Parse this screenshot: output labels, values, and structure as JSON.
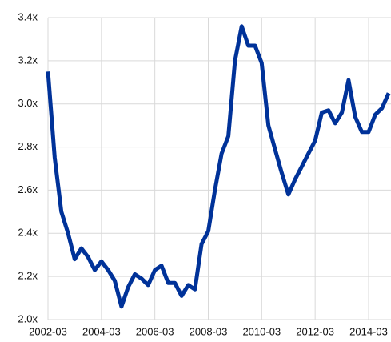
{
  "chart_data": {
    "type": "line",
    "categories": [
      "2002-03",
      null,
      null,
      null,
      null,
      null,
      null,
      null,
      "2004-03",
      null,
      null,
      null,
      null,
      null,
      null,
      null,
      "2006-03",
      null,
      null,
      null,
      null,
      null,
      null,
      null,
      "2008-03",
      null,
      null,
      null,
      null,
      null,
      null,
      null,
      "2010-03",
      null,
      null,
      null,
      null,
      null,
      null,
      null,
      "2012-03",
      null,
      null,
      null,
      null,
      null,
      null,
      null,
      "2014-03",
      null,
      null,
      null
    ],
    "series": [
      {
        "color": "#003299",
        "values": [
          3.15,
          2.75,
          2.5,
          2.4,
          2.28,
          2.33,
          2.29,
          2.23,
          2.27,
          2.23,
          2.18,
          2.06,
          2.15,
          2.21,
          2.19,
          2.16,
          2.23,
          2.25,
          2.17,
          2.17,
          2.11,
          2.16,
          2.14,
          2.35,
          2.41,
          2.6,
          2.77,
          2.85,
          3.2,
          3.36,
          3.27,
          3.27,
          3.19,
          2.9,
          2.79,
          2.68,
          2.58,
          2.65,
          2.71,
          2.77,
          2.83,
          2.96,
          2.97,
          2.91,
          2.96,
          3.11,
          2.94,
          2.87,
          2.87,
          2.95,
          2.98,
          3.05
        ]
      }
    ],
    "ylim": [
      2.0,
      3.4
    ],
    "yticks": [
      {
        "value": 2.0,
        "label": "2.0x"
      },
      {
        "value": 2.2,
        "label": "2.2x"
      },
      {
        "value": 2.4,
        "label": "2.4x"
      },
      {
        "value": 2.6,
        "label": "2.6x"
      },
      {
        "value": 2.8,
        "label": "2.8x"
      },
      {
        "value": 3.0,
        "label": "3.0x"
      },
      {
        "value": 3.2,
        "label": "3.2x"
      },
      {
        "value": 3.4,
        "label": "3.4x"
      }
    ],
    "grid": true
  }
}
